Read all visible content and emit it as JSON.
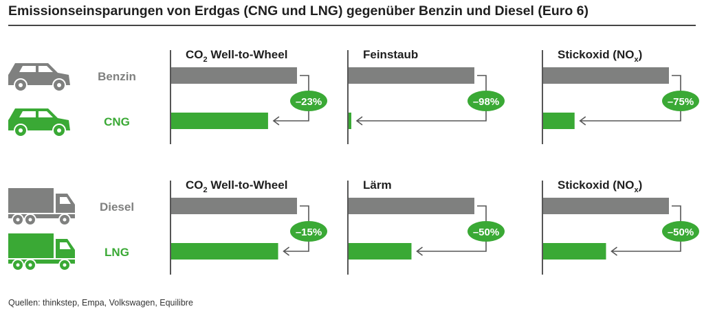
{
  "title": "Emissionseinsparungen von Erdgas (CNG und LNG) gegenüber Benzin und Diesel (Euro 6)",
  "source": "Quellen: thinkstep, Empa, Volkswagen, Equilibre",
  "colors": {
    "reference": "#7f807f",
    "gas": "#3aa935",
    "text": "#1f1f1f"
  },
  "chart_data": [
    {
      "type": "bar",
      "group": "Pkw",
      "categories": [
        "Benzin",
        "CNG"
      ],
      "category_icons": [
        "car-icon",
        "car-icon"
      ],
      "panels": [
        {
          "title_main": "CO",
          "title_sub": "2",
          "title_rest": " Well-to-Wheel",
          "values": [
            100,
            77
          ],
          "change": "–23%"
        },
        {
          "title_main": "Feinstaub",
          "title_sub": "",
          "title_rest": "",
          "values": [
            100,
            2
          ],
          "change": "–98%"
        },
        {
          "title_main": "Stickoxid (NO",
          "title_sub": "x",
          "title_rest": ")",
          "values": [
            100,
            25
          ],
          "change": "–75%"
        }
      ]
    },
    {
      "type": "bar",
      "group": "Lkw",
      "categories": [
        "Diesel",
        "LNG"
      ],
      "category_icons": [
        "truck-icon",
        "truck-icon"
      ],
      "panels": [
        {
          "title_main": "CO",
          "title_sub": "2",
          "title_rest": " Well-to-Wheel",
          "values": [
            100,
            85
          ],
          "change": "–15%"
        },
        {
          "title_main": "Lärm",
          "title_sub": "",
          "title_rest": "",
          "values": [
            100,
            50
          ],
          "change": "–50%"
        },
        {
          "title_main": "Stickoxid (NO",
          "title_sub": "x",
          "title_rest": ")",
          "values": [
            100,
            50
          ],
          "change": "–50%"
        }
      ]
    }
  ]
}
